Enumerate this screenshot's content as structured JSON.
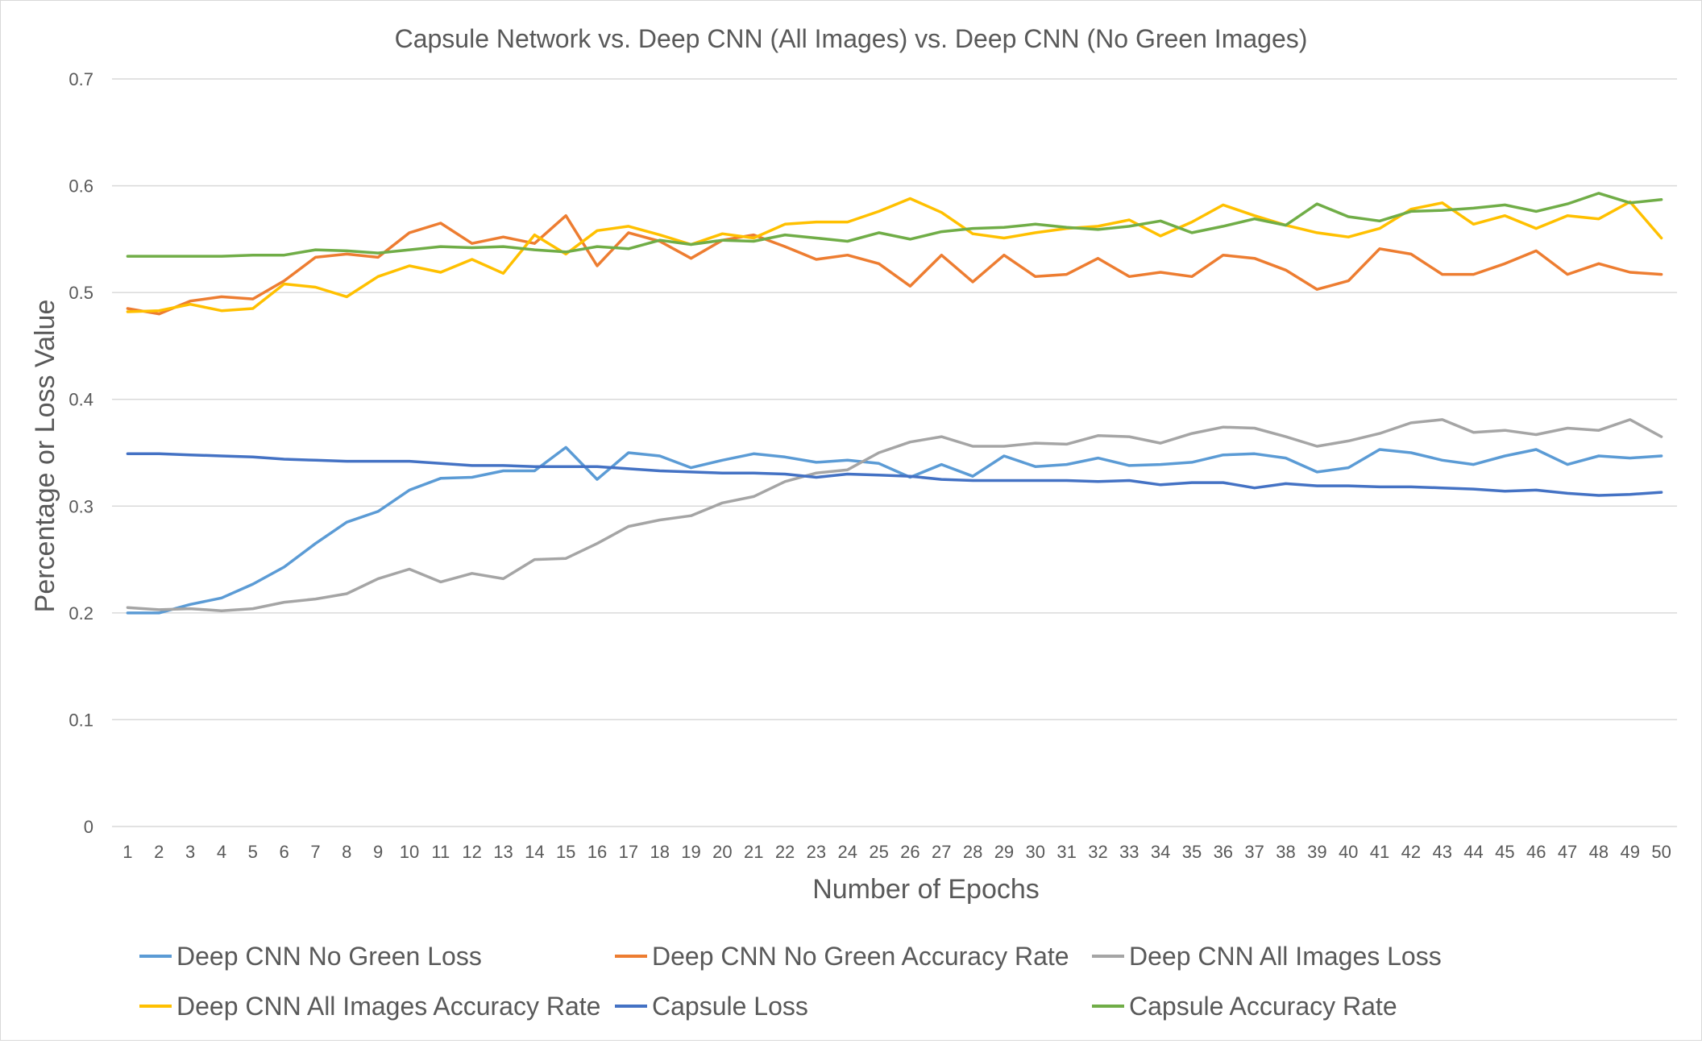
{
  "chart_data": {
    "type": "line",
    "title": "Capsule Network vs. Deep CNN (All Images) vs. Deep CNN (No Green Images)",
    "xlabel": "Number of Epochs",
    "ylabel": "Percentage or Loss Value",
    "ylim": [
      0,
      0.7
    ],
    "yticks": [
      "0",
      "0.1",
      "0.2",
      "0.3",
      "0.4",
      "0.5",
      "0.6",
      "0.7"
    ],
    "grid": "horizontal",
    "legend_position": "bottom",
    "x": [
      "1",
      "2",
      "3",
      "4",
      "5",
      "6",
      "7",
      "8",
      "9",
      "10",
      "11",
      "12",
      "13",
      "14",
      "15",
      "16",
      "17",
      "18",
      "19",
      "20",
      "21",
      "22",
      "23",
      "24",
      "25",
      "26",
      "27",
      "28",
      "29",
      "30",
      "31",
      "32",
      "33",
      "34",
      "35",
      "36",
      "37",
      "38",
      "39",
      "40",
      "41",
      "42",
      "43",
      "44",
      "45",
      "46",
      "47",
      "48",
      "49",
      "50"
    ],
    "series": [
      {
        "name": "Deep CNN No Green Loss",
        "color": "#5b9bd5",
        "values": [
          0.2,
          0.2,
          0.208,
          0.214,
          0.227,
          0.243,
          0.265,
          0.285,
          0.295,
          0.315,
          0.326,
          0.327,
          0.333,
          0.333,
          0.355,
          0.325,
          0.35,
          0.347,
          0.336,
          0.343,
          0.349,
          0.346,
          0.341,
          0.343,
          0.34,
          0.327,
          0.339,
          0.328,
          0.347,
          0.337,
          0.339,
          0.345,
          0.338,
          0.339,
          0.341,
          0.348,
          0.349,
          0.345,
          0.332,
          0.336,
          0.353,
          0.35,
          0.343,
          0.339,
          0.347,
          0.353,
          0.339,
          0.347,
          0.345,
          0.347
        ]
      },
      {
        "name": "Deep CNN No Green Accuracy Rate",
        "color": "#ed7d31",
        "values": [
          0.485,
          0.48,
          0.492,
          0.496,
          0.494,
          0.511,
          0.533,
          0.536,
          0.533,
          0.556,
          0.565,
          0.546,
          0.552,
          0.546,
          0.572,
          0.525,
          0.556,
          0.548,
          0.532,
          0.549,
          0.554,
          0.543,
          0.531,
          0.535,
          0.527,
          0.506,
          0.535,
          0.51,
          0.535,
          0.515,
          0.517,
          0.532,
          0.515,
          0.519,
          0.515,
          0.535,
          0.532,
          0.521,
          0.503,
          0.511,
          0.541,
          0.536,
          0.517,
          0.517,
          0.527,
          0.539,
          0.517,
          0.527,
          0.519,
          0.517
        ]
      },
      {
        "name": "Deep CNN All Images Loss",
        "color": "#a5a5a5",
        "values": [
          0.205,
          0.203,
          0.204,
          0.202,
          0.204,
          0.21,
          0.213,
          0.218,
          0.232,
          0.241,
          0.229,
          0.237,
          0.232,
          0.25,
          0.251,
          0.265,
          0.281,
          0.287,
          0.291,
          0.303,
          0.309,
          0.323,
          0.331,
          0.334,
          0.35,
          0.36,
          0.365,
          0.356,
          0.356,
          0.359,
          0.358,
          0.366,
          0.365,
          0.359,
          0.368,
          0.374,
          0.373,
          0.365,
          0.356,
          0.361,
          0.368,
          0.378,
          0.381,
          0.369,
          0.371,
          0.367,
          0.373,
          0.371,
          0.381,
          0.365
        ]
      },
      {
        "name": "Deep CNN All Images Accuracy Rate",
        "color": "#ffc000",
        "values": [
          0.482,
          0.483,
          0.489,
          0.483,
          0.485,
          0.508,
          0.505,
          0.496,
          0.515,
          0.525,
          0.519,
          0.531,
          0.518,
          0.554,
          0.536,
          0.558,
          0.562,
          0.554,
          0.545,
          0.555,
          0.551,
          0.564,
          0.566,
          0.566,
          0.576,
          0.588,
          0.575,
          0.555,
          0.551,
          0.556,
          0.56,
          0.562,
          0.568,
          0.553,
          0.566,
          0.582,
          0.572,
          0.563,
          0.556,
          0.552,
          0.56,
          0.578,
          0.584,
          0.564,
          0.572,
          0.56,
          0.572,
          0.569,
          0.585,
          0.551
        ]
      },
      {
        "name": "Capsule Loss",
        "color": "#4472c4",
        "values": [
          0.349,
          0.349,
          0.348,
          0.347,
          0.346,
          0.344,
          0.343,
          0.342,
          0.342,
          0.342,
          0.34,
          0.338,
          0.338,
          0.337,
          0.337,
          0.337,
          0.335,
          0.333,
          0.332,
          0.331,
          0.331,
          0.33,
          0.327,
          0.33,
          0.329,
          0.328,
          0.325,
          0.324,
          0.324,
          0.324,
          0.324,
          0.323,
          0.324,
          0.32,
          0.322,
          0.322,
          0.317,
          0.321,
          0.319,
          0.319,
          0.318,
          0.318,
          0.317,
          0.316,
          0.314,
          0.315,
          0.312,
          0.31,
          0.311,
          0.313
        ]
      },
      {
        "name": "Capsule Accuracy Rate",
        "color": "#70ad47",
        "values": [
          0.534,
          0.534,
          0.534,
          0.534,
          0.535,
          0.535,
          0.54,
          0.539,
          0.537,
          0.54,
          0.543,
          0.542,
          0.543,
          0.54,
          0.538,
          0.543,
          0.541,
          0.549,
          0.545,
          0.549,
          0.548,
          0.554,
          0.551,
          0.548,
          0.556,
          0.55,
          0.557,
          0.56,
          0.561,
          0.564,
          0.561,
          0.559,
          0.562,
          0.567,
          0.556,
          0.562,
          0.569,
          0.563,
          0.583,
          0.571,
          0.567,
          0.576,
          0.577,
          0.579,
          0.582,
          0.576,
          0.583,
          0.593,
          0.584,
          0.587
        ]
      }
    ]
  }
}
